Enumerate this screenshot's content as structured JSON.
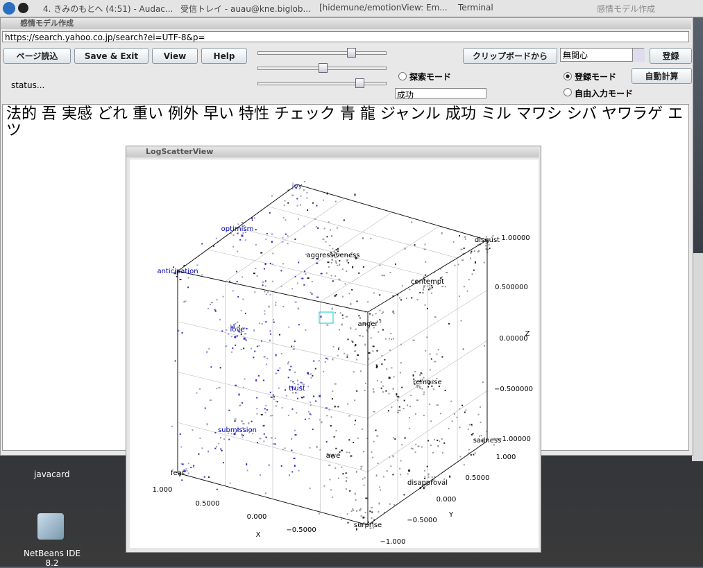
{
  "taskbar": {
    "items": [
      "4. きみのもとへ (4:51) - Audac...",
      "受信トレイ - auau@kne.biglob...",
      "[hidemune/emotionView: Em...",
      "Terminal"
    ],
    "active_title": "感情モデル作成"
  },
  "main_window": {
    "title": "感情モデル作成",
    "url": "https://search.yahoo.co.jp/search?ei=UTF-8&p=",
    "buttons": [
      "ページ読込",
      "Save & Exit",
      "View",
      "Help"
    ],
    "search_mode": "探索モード",
    "search_field": "成功",
    "status": "status...",
    "clipboard_button": "クリップボードから",
    "combo": "無関心",
    "register_button": "登録",
    "register_mode": "登録モード",
    "free_mode": "自由入力モード",
    "auto_button": "自動計算",
    "content": "法的 吾 実感 どれ 重い 例外 早い 特性 チェック 青 龍 ジャンル 成功 ミル マワシ シバ ヤワラゲ エツ"
  },
  "scatter_window": {
    "title": "LogScatterView",
    "labels": [
      "joy",
      "optimism",
      "aggressiveness",
      "disgust",
      "anticipation",
      "contempt",
      "anger",
      "love",
      "trust",
      "remorse",
      "submission",
      "sadness",
      "awe",
      "fear",
      "disapproval",
      "surprise"
    ],
    "z_ticks": [
      "1.00000",
      "0.500000",
      "0.00000",
      "−0.500000",
      "−1.00000"
    ],
    "z_label": "Z",
    "y_ticks": [
      "1.000",
      "0.5000",
      "0.000",
      "−0.5000",
      "−1.000"
    ],
    "y_label": "Y",
    "x_ticks": [
      "1.000",
      "0.5000",
      "0.000",
      "−0.5000"
    ],
    "x_label": "X"
  },
  "desktop": {
    "icons": [
      "javacard",
      "NetBeans IDE 8.2"
    ]
  }
}
